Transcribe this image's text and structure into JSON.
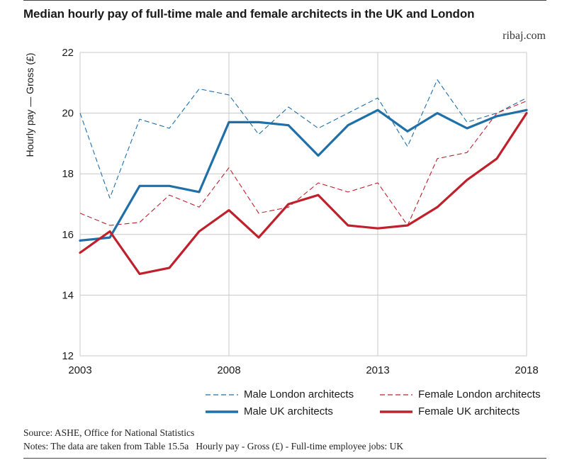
{
  "header": {
    "title": "Median hourly pay of full-time male and female architects in the UK and London",
    "brand": "ribaj.com"
  },
  "colors": {
    "blue": "#1f6fa8",
    "red": "#c0202c"
  },
  "chart_data": {
    "type": "line",
    "title": "Median hourly pay of full-time male and female architects in the UK and London",
    "xlabel": "",
    "ylabel": "Hourly pay — Gross (£)",
    "xlim": [
      2003,
      2018
    ],
    "ylim": [
      12,
      22
    ],
    "x_ticks": [
      2003,
      2008,
      2013,
      2018
    ],
    "y_ticks": [
      12,
      14,
      16,
      18,
      20,
      22
    ],
    "grid": "horizontal",
    "legend_position": "bottom-right",
    "x": [
      2003,
      2004,
      2005,
      2006,
      2007,
      2008,
      2009,
      2010,
      2011,
      2012,
      2013,
      2014,
      2015,
      2016,
      2017,
      2018
    ],
    "series": [
      {
        "name": "Male London architects",
        "style": "dashed",
        "color": "#1f6fa8",
        "values": [
          20.0,
          17.2,
          19.8,
          19.5,
          20.8,
          20.6,
          19.3,
          20.2,
          19.5,
          20.0,
          20.5,
          18.9,
          21.1,
          19.7,
          20.0,
          20.5
        ]
      },
      {
        "name": "Female London architects",
        "style": "dashed",
        "color": "#c0202c",
        "values": [
          16.7,
          16.3,
          16.4,
          17.3,
          16.9,
          18.2,
          16.7,
          16.9,
          17.7,
          17.4,
          17.7,
          16.3,
          18.5,
          18.7,
          20.0,
          20.4
        ]
      },
      {
        "name": "Male UK architects",
        "style": "solid",
        "color": "#1f6fa8",
        "values": [
          15.8,
          15.9,
          17.6,
          17.6,
          17.4,
          19.7,
          19.7,
          19.6,
          18.6,
          19.6,
          20.1,
          19.4,
          20.0,
          19.5,
          19.9,
          20.1
        ]
      },
      {
        "name": "Female UK architects",
        "style": "solid",
        "color": "#c0202c",
        "values": [
          15.4,
          16.1,
          14.7,
          14.9,
          16.1,
          16.8,
          15.9,
          17.0,
          17.3,
          16.3,
          16.2,
          16.3,
          16.9,
          17.8,
          18.5,
          20.0
        ]
      }
    ]
  },
  "footer": {
    "source": "Source: ASHE, Office for National Statistics",
    "notes": "Notes: The data are taken from Table 15.5a   Hourly pay - Gross (£) - Full-time employee jobs: UK"
  }
}
